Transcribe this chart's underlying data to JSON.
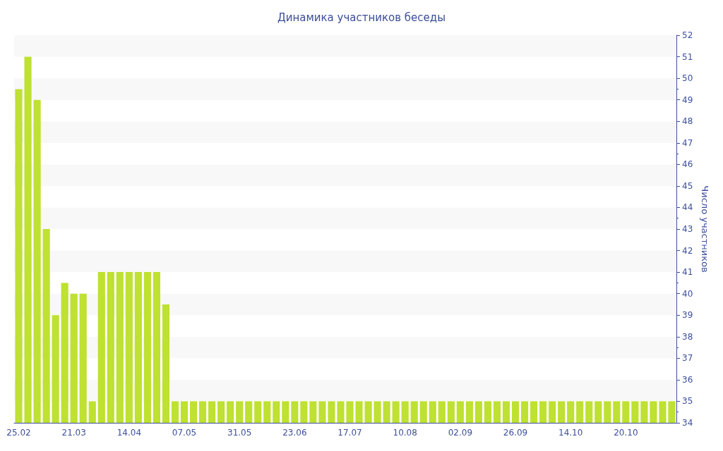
{
  "chart_data": {
    "type": "bar",
    "title": "Динамика участников беседы",
    "y2label": "Число участников",
    "categories": [
      "25.02",
      null,
      null,
      null,
      null,
      null,
      "21.03",
      null,
      null,
      null,
      null,
      null,
      "14.04",
      null,
      null,
      null,
      null,
      null,
      "07.05",
      null,
      null,
      null,
      null,
      null,
      "31.05",
      null,
      null,
      null,
      null,
      null,
      "23.06",
      null,
      null,
      null,
      null,
      null,
      "17.07",
      null,
      null,
      null,
      null,
      null,
      "10.08",
      null,
      null,
      null,
      null,
      null,
      "02.09",
      null,
      null,
      null,
      null,
      null,
      "26.09",
      null,
      null,
      null,
      null,
      null,
      "14.10",
      null,
      null,
      null,
      null,
      null,
      "20.10",
      null,
      null,
      null,
      null,
      null
    ],
    "series": [
      {
        "axis": "y2",
        "color": "#bee132",
        "values": [
          49.5,
          51,
          49,
          43,
          39,
          40.5,
          40,
          40,
          35,
          41,
          41,
          41,
          41,
          41,
          41,
          41,
          39.5,
          35,
          35,
          35,
          35,
          35,
          35,
          35,
          35,
          35,
          35,
          35,
          35,
          35,
          35,
          35,
          35,
          35,
          35,
          35,
          35,
          35,
          35,
          35,
          35,
          35,
          35,
          35,
          35,
          35,
          35,
          35,
          35,
          35,
          35,
          35,
          35,
          35,
          35,
          35,
          35,
          35,
          35,
          35,
          35,
          35,
          35,
          35,
          35,
          35,
          35,
          35,
          35,
          35,
          35,
          35
        ]
      }
    ],
    "y2lim": [
      34,
      52
    ],
    "y2ticks": [
      34,
      35,
      36,
      37,
      38,
      39,
      40,
      41,
      42,
      43,
      44,
      45,
      46,
      47,
      48,
      49,
      50,
      51,
      52
    ]
  }
}
